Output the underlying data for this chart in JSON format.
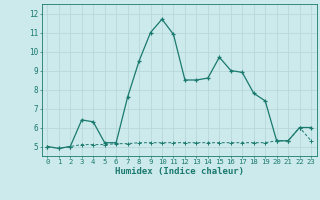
{
  "xlabel": "Humidex (Indice chaleur)",
  "xlim": [
    -0.5,
    23.5
  ],
  "ylim": [
    4.5,
    12.5
  ],
  "yticks": [
    5,
    6,
    7,
    8,
    9,
    10,
    11,
    12
  ],
  "xticks": [
    0,
    1,
    2,
    3,
    4,
    5,
    6,
    7,
    8,
    9,
    10,
    11,
    12,
    13,
    14,
    15,
    16,
    17,
    18,
    19,
    20,
    21,
    22,
    23
  ],
  "bg_color": "#cce9ec",
  "grid_color": "#b8d8dc",
  "line_color": "#1a7a6e",
  "series1_x": [
    0,
    1,
    2,
    3,
    4,
    5,
    6,
    7,
    8,
    9,
    10,
    11,
    12,
    13,
    14,
    15,
    16,
    17,
    18,
    19,
    20,
    21,
    22,
    23
  ],
  "series1_y": [
    5.0,
    4.9,
    5.0,
    6.4,
    6.3,
    5.2,
    5.2,
    7.6,
    9.5,
    11.0,
    11.7,
    10.9,
    8.5,
    8.5,
    8.6,
    9.7,
    9.0,
    8.9,
    7.8,
    7.4,
    5.3,
    5.3,
    6.0,
    6.0
  ],
  "series2_x": [
    0,
    1,
    2,
    3,
    4,
    5,
    6,
    7,
    8,
    9,
    10,
    11,
    12,
    13,
    14,
    15,
    16,
    17,
    18,
    19,
    20,
    21,
    22,
    23
  ],
  "series2_y": [
    5.0,
    4.9,
    5.0,
    5.1,
    5.1,
    5.1,
    5.15,
    5.15,
    5.2,
    5.2,
    5.2,
    5.2,
    5.2,
    5.2,
    5.2,
    5.2,
    5.2,
    5.2,
    5.2,
    5.2,
    5.3,
    5.3,
    6.0,
    5.3
  ]
}
